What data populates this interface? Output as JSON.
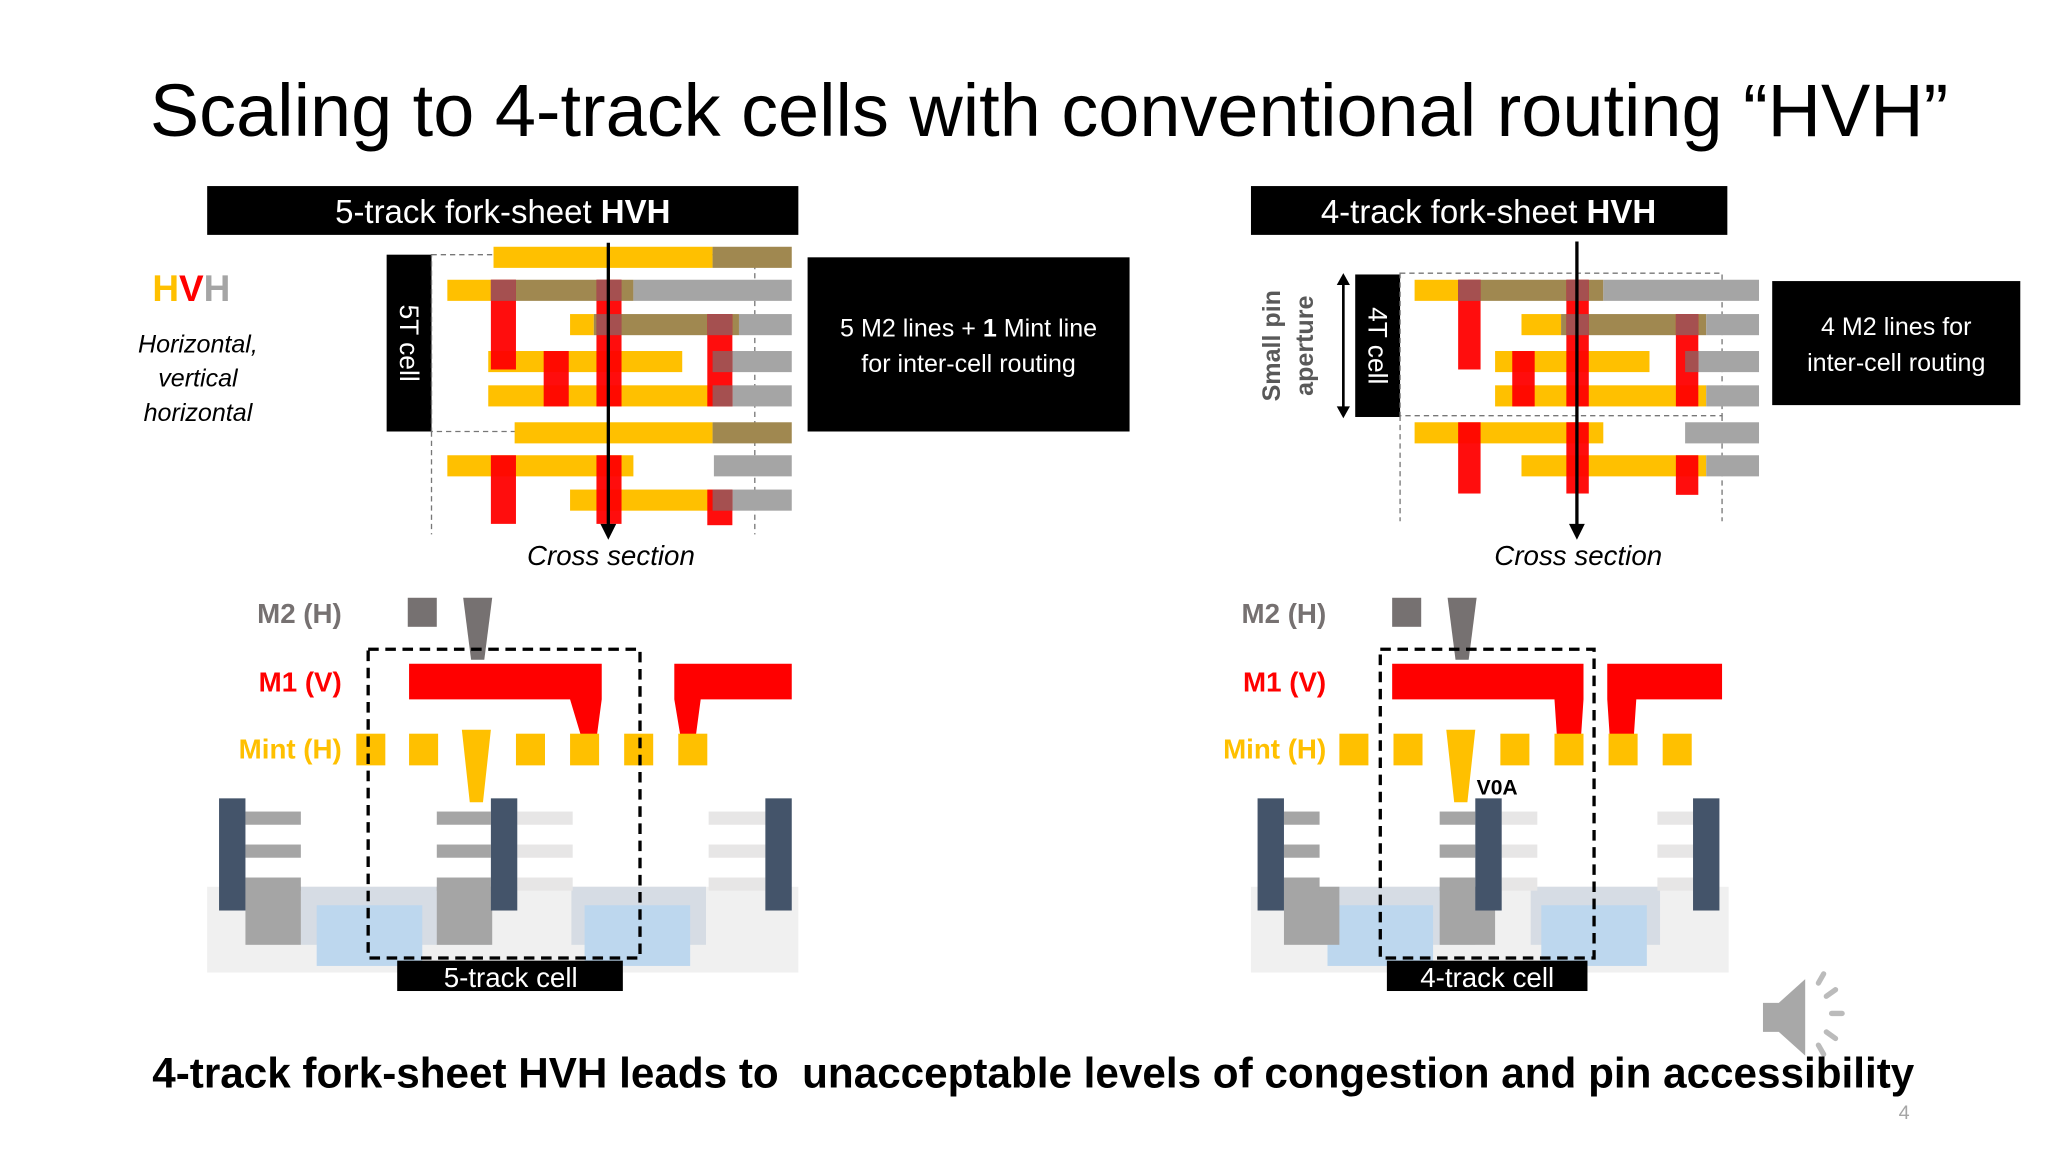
{
  "slide": {
    "title": "Scaling to 4-track cells with conventional routing “HVH”",
    "conclusion": "4-track fork-sheet HVH leads to  unacceptable levels of congestion and pin accessibility",
    "page_number": "4"
  },
  "legend": {
    "hvh_h1": "H",
    "hvh_v": "V",
    "hvh_h2": "H",
    "line1": "Horizontal,",
    "line2": "vertical",
    "line3": "horizontal"
  },
  "left_panel": {
    "title_prefix": "5-track fork-sheet ",
    "title_bold": "HVH",
    "cell_label": "5T cell",
    "info_line1_a": "5 M2 lines + ",
    "info_line1_b": "1",
    "info_line1_c": " Mint line",
    "info_line2": "for inter-cell routing",
    "cross_section": "Cross section",
    "layer_m2": "M2 (H)",
    "layer_m1": "M1 (V)",
    "layer_mint": "Mint (H)",
    "cell_caption": "5-track cell"
  },
  "right_panel": {
    "title_prefix": "4-track fork-sheet ",
    "title_bold": "HVH",
    "cell_label": "4T cell",
    "aperture_line1": "Small pin",
    "aperture_line2": "aperture",
    "info_line1": "4 M2 lines for",
    "info_line2": "inter-cell routing",
    "cross_section": "Cross section",
    "layer_m2": "M2 (H)",
    "layer_m1": "M1 (V)",
    "layer_mint": "Mint (H)",
    "via_label": "V0A",
    "cell_caption": "4-track cell"
  },
  "colors": {
    "mint": "#ffc000",
    "m1": "#ff0000",
    "m2": "#a5a5a5",
    "overlap": "#a08850",
    "gate": "#44546a",
    "m2_label": "#767171"
  },
  "icons": {
    "audio": "speaker-icon"
  }
}
